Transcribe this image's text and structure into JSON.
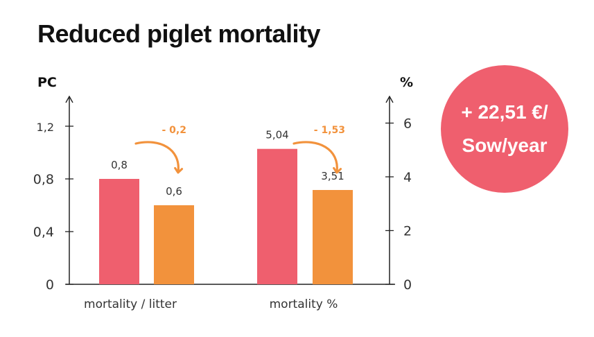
{
  "title": "Reduced piglet mortality",
  "colors": {
    "before": "#ef5f6e",
    "after": "#f2923c",
    "delta": "#f2923c",
    "badge_bg": "#ef5f6e",
    "axis": "#222222"
  },
  "badge": {
    "line1": "+ 22,51 €/",
    "line2": "Sow/year"
  },
  "chart_data": {
    "type": "bar",
    "categories": [
      "mortality / litter",
      "mortality %"
    ],
    "series": [
      {
        "values": [
          0.8,
          5.04
        ]
      },
      {
        "values": [
          0.6,
          3.51
        ]
      }
    ],
    "value_labels": [
      [
        "0,8",
        "0,6"
      ],
      [
        "5,04",
        "3,51"
      ]
    ],
    "deltas": [
      "- 0,2",
      "- 1,53"
    ],
    "left_axis": {
      "label": "PC",
      "range": [
        0,
        1.2
      ],
      "ticks": [
        0,
        0.4,
        0.8,
        1.2
      ],
      "tick_labels": [
        "0",
        "0,4",
        "0,8",
        "1,2"
      ]
    },
    "right_axis": {
      "label": "%",
      "range": [
        0,
        6
      ],
      "ticks": [
        0,
        2,
        4,
        6
      ],
      "tick_labels": [
        "0",
        "2",
        "4",
        "6"
      ]
    },
    "category_axis": [
      "left",
      "right"
    ],
    "grid": false,
    "legend": "none"
  }
}
